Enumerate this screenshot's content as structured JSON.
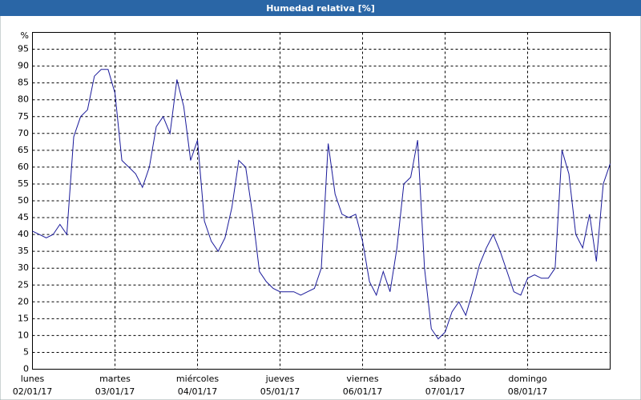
{
  "chart_data": {
    "type": "line",
    "title": "Humedad relativa [%]",
    "ylabel": "%",
    "days": [
      {
        "weekday": "lunes",
        "date": "02/01/17"
      },
      {
        "weekday": "martes",
        "date": "03/01/17"
      },
      {
        "weekday": "miércoles",
        "date": "04/01/17"
      },
      {
        "weekday": "jueves",
        "date": "05/01/17"
      },
      {
        "weekday": "viernes",
        "date": "06/01/17"
      },
      {
        "weekday": "sábado",
        "date": "07/01/17"
      },
      {
        "weekday": "domingo",
        "date": "08/01/17"
      }
    ],
    "series": [
      {
        "name": "Humedad relativa",
        "color": "#1a1a9a",
        "values": [
          41,
          40,
          39,
          40,
          43,
          40,
          69,
          75,
          77,
          87,
          89,
          89,
          82,
          62,
          60,
          58,
          54,
          60,
          72,
          75,
          70,
          86,
          78,
          62,
          68,
          44,
          38,
          35,
          39,
          48,
          62,
          60,
          46,
          29,
          26,
          24,
          23,
          23,
          23,
          22,
          23,
          24,
          30,
          67,
          52,
          46,
          45,
          46,
          38,
          26,
          22,
          29,
          23,
          36,
          55,
          57,
          68,
          30,
          12,
          9,
          11,
          17,
          20,
          16,
          23,
          31,
          36,
          40,
          35,
          29,
          23,
          22,
          27,
          28,
          27,
          27,
          30,
          65,
          58,
          40,
          36,
          46,
          32,
          55,
          61
        ]
      }
    ],
    "ylim": [
      0,
      100
    ],
    "yticks": [
      0,
      5,
      10,
      15,
      20,
      25,
      30,
      35,
      40,
      45,
      50,
      55,
      60,
      65,
      70,
      75,
      80,
      85,
      90,
      95
    ],
    "grid": true
  }
}
